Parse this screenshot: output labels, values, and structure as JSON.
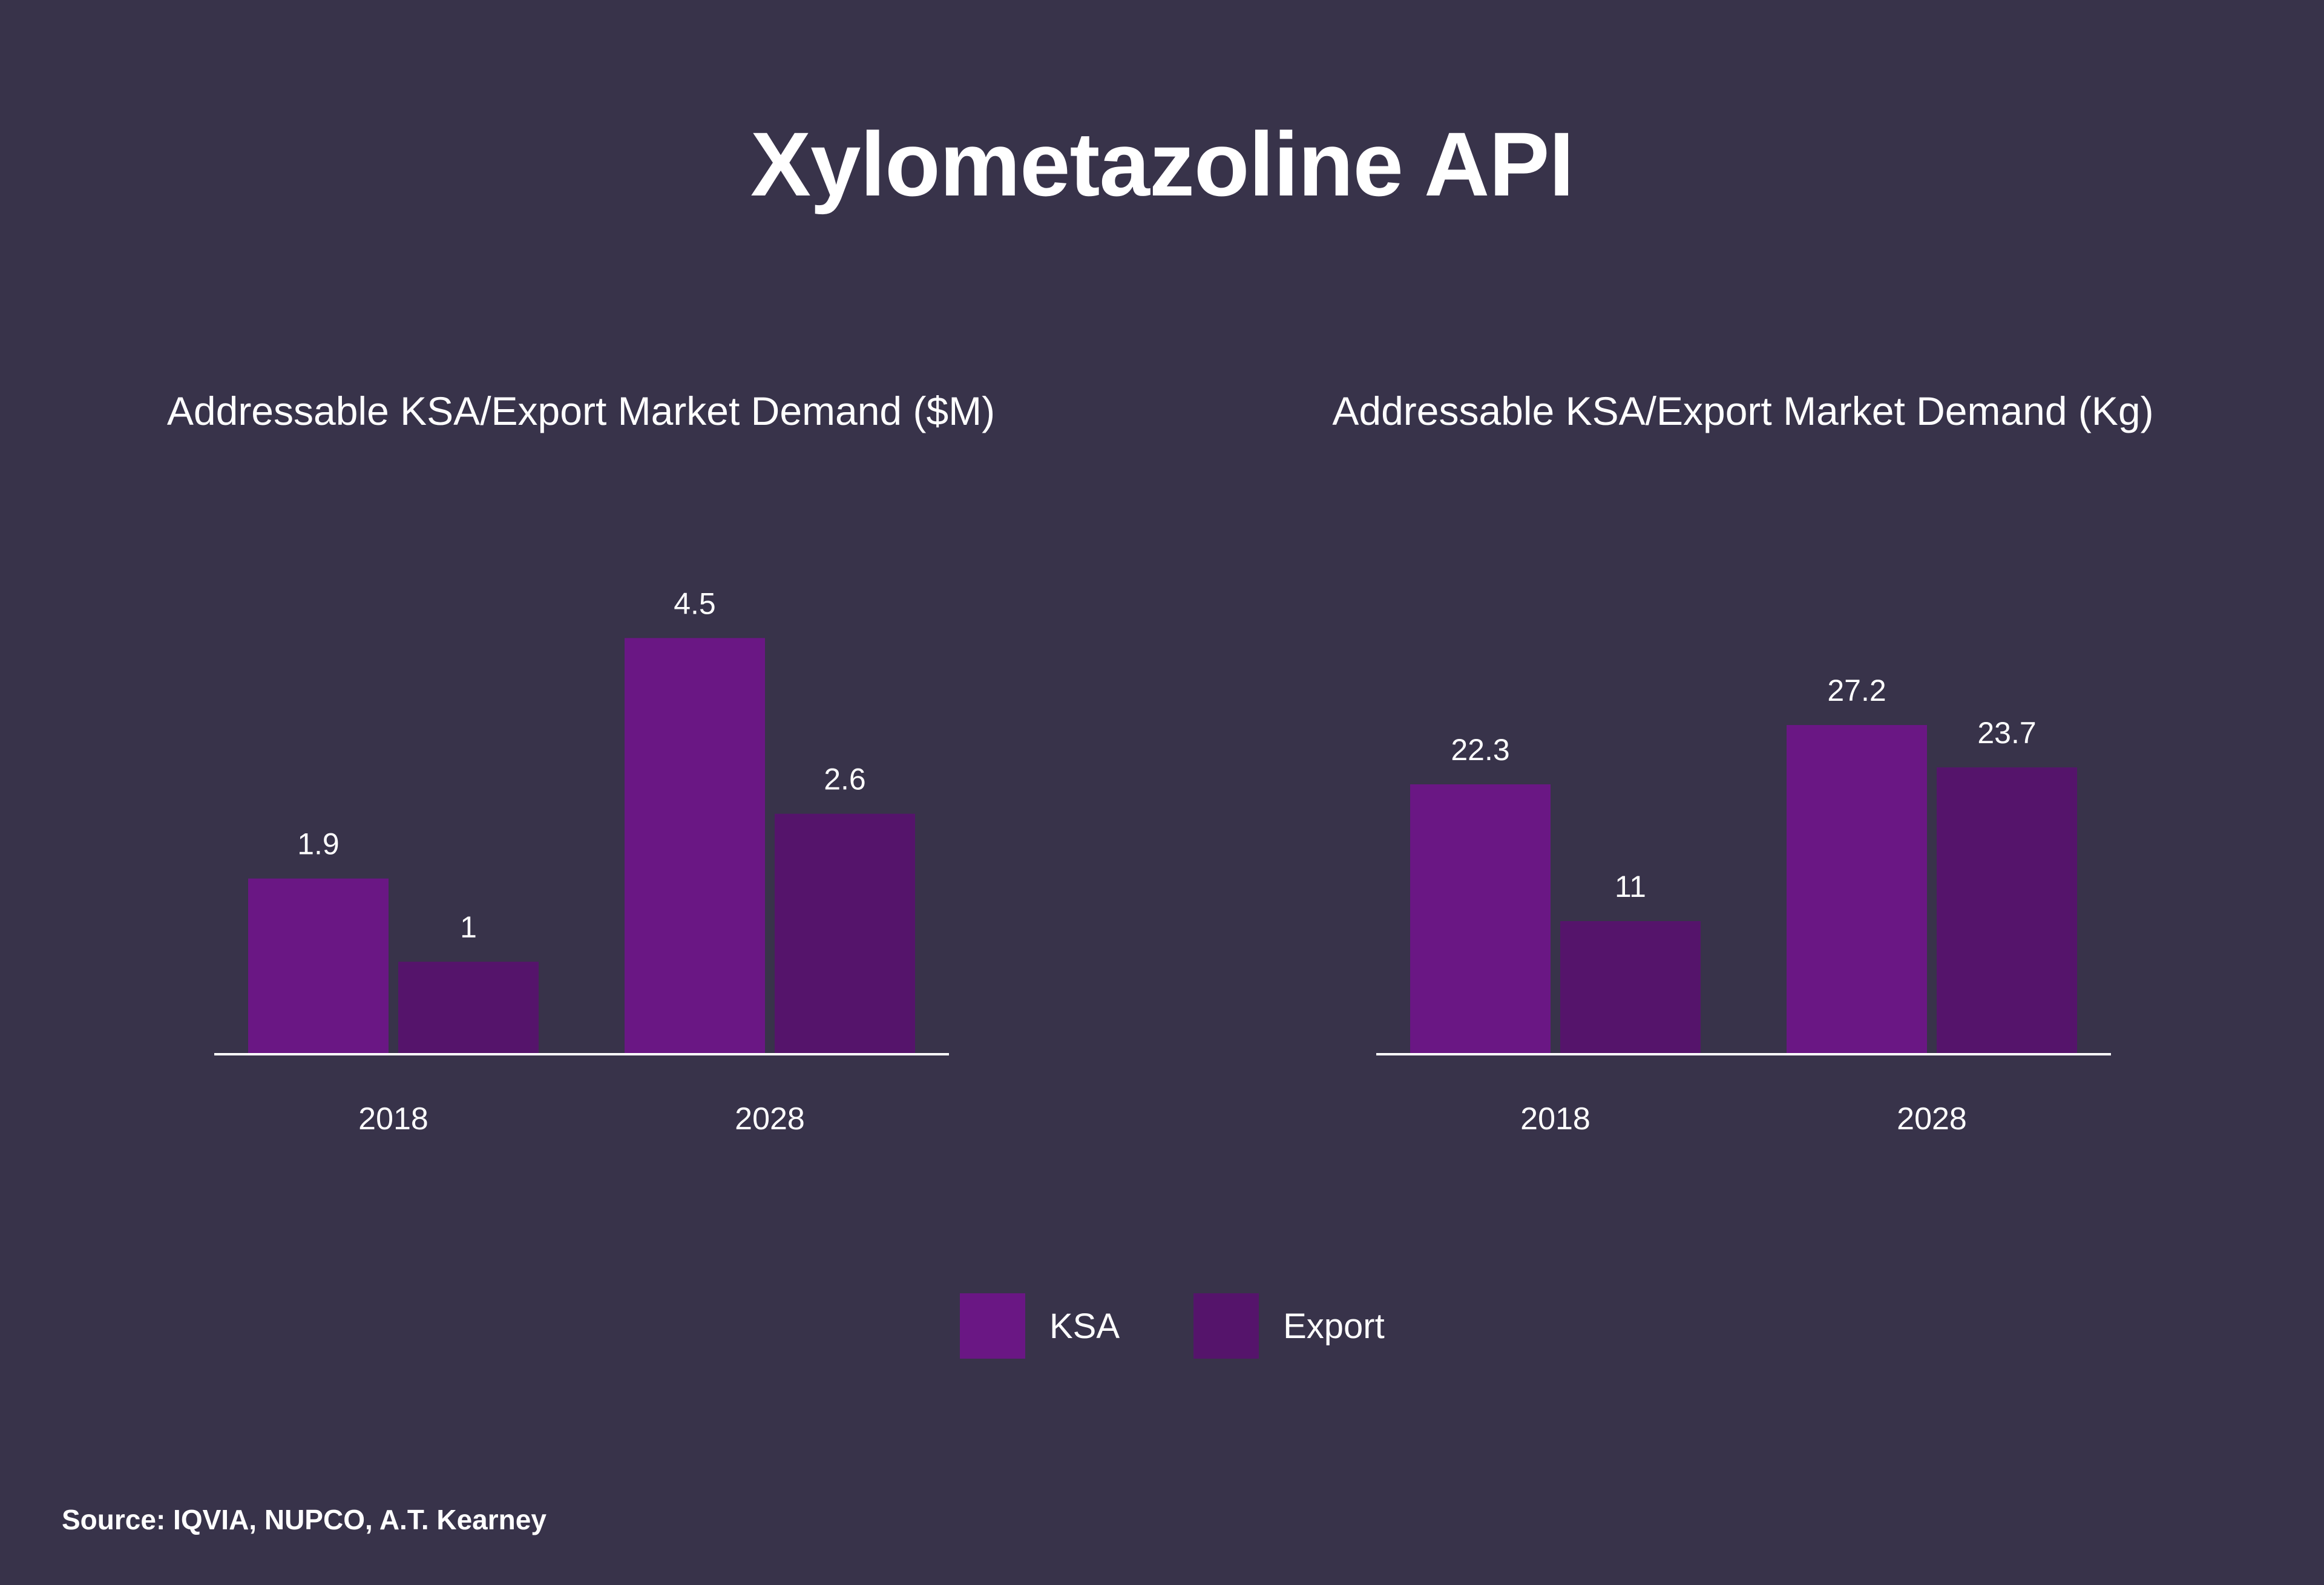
{
  "title": "Xylometazoline API",
  "colors": {
    "background": "#38334a",
    "ksa": "#6a1784",
    "export": "#55146b",
    "axis": "#ffffff"
  },
  "legend": [
    {
      "label": "KSA",
      "color": "#6a1784"
    },
    {
      "label": "Export",
      "color": "#55146b"
    }
  ],
  "source": "Source: IQVIA, NUPCO, A.T. Kearney",
  "chart_data": [
    {
      "type": "bar",
      "title": "Addressable KSA/Export Market Demand ($M)",
      "categories": [
        "2018",
        "2028"
      ],
      "series": [
        {
          "name": "KSA",
          "values": [
            1.9,
            4.5
          ],
          "labels": [
            "1.9",
            "4.5"
          ]
        },
        {
          "name": "Export",
          "values": [
            1,
            2.6
          ],
          "labels": [
            "1",
            "2.6"
          ]
        }
      ],
      "ylim": [
        0,
        5.3
      ],
      "xlabel": "",
      "ylabel": "",
      "grid": false,
      "legend": "bottom-center"
    },
    {
      "type": "bar",
      "title": "Addressable KSA/Export Market Demand (Kg)",
      "categories": [
        "2018",
        "2028"
      ],
      "series": [
        {
          "name": "KSA",
          "values": [
            22.3,
            27.2
          ],
          "labels": [
            "22.3",
            "27.2"
          ]
        },
        {
          "name": "Export",
          "values": [
            11,
            23.7
          ],
          "labels": [
            "11",
            "23.7"
          ]
        }
      ],
      "ylim": [
        0,
        40.5
      ],
      "xlabel": "",
      "ylabel": "",
      "grid": false,
      "legend": "bottom-center"
    }
  ]
}
